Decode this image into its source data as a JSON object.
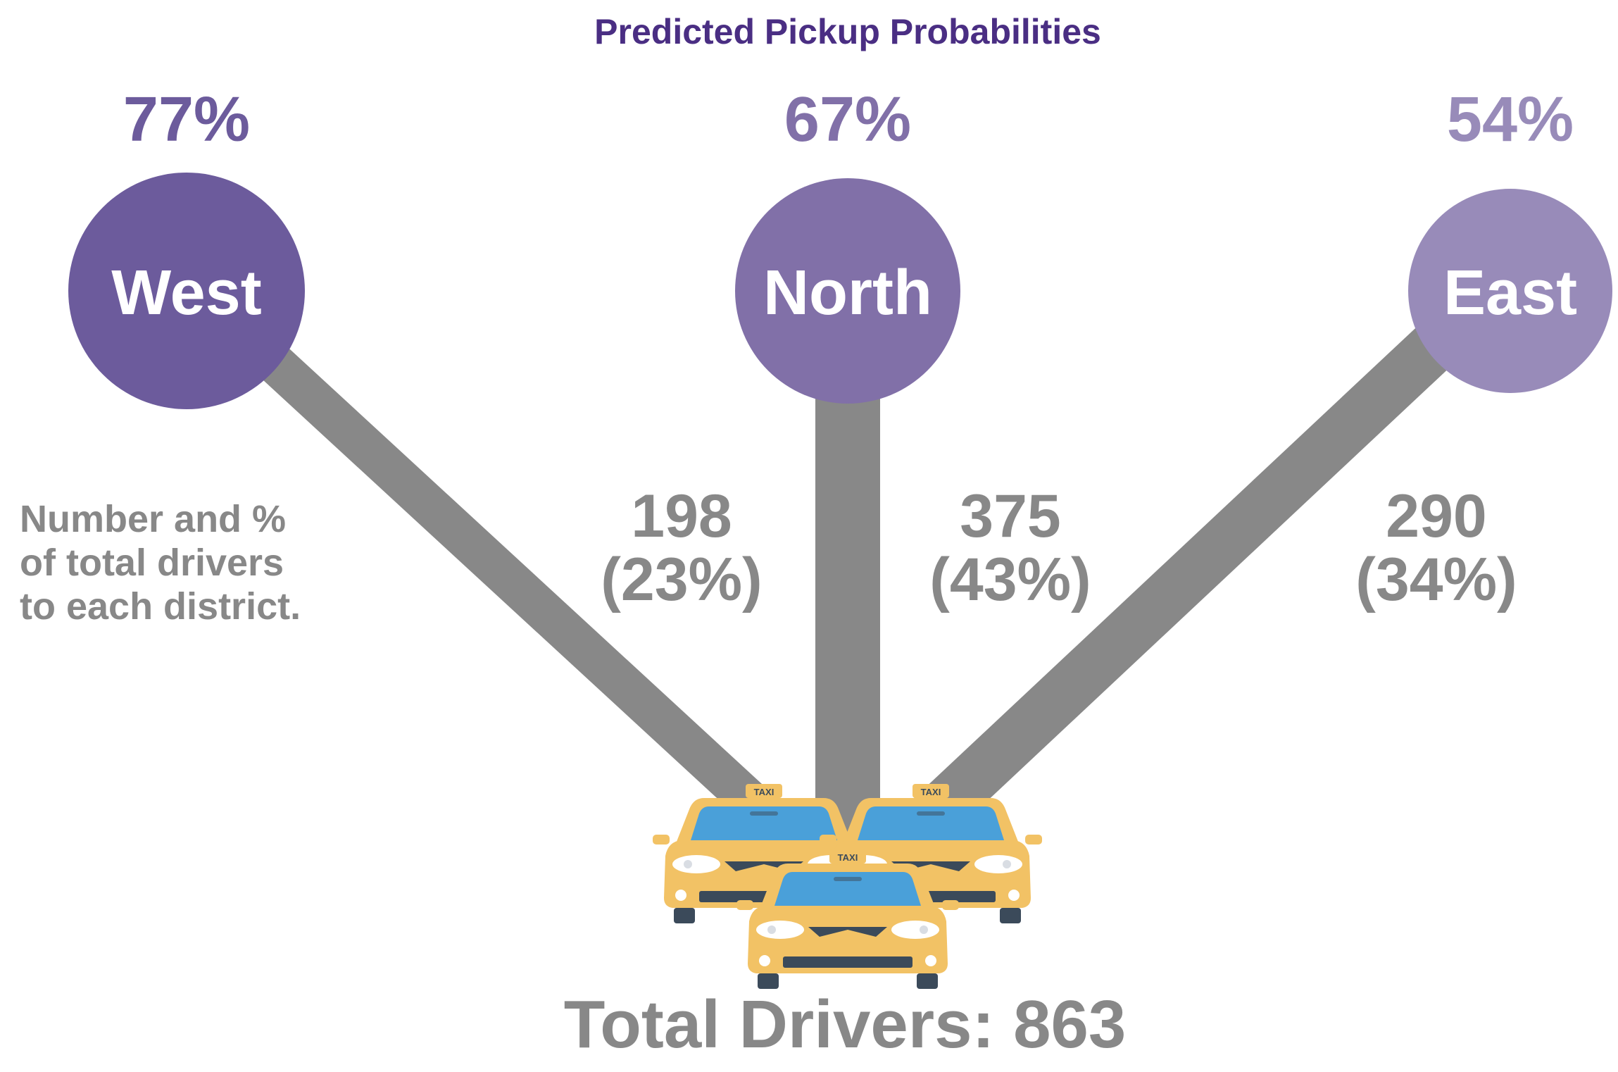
{
  "title": "Predicted Pickup Probabilities",
  "colors": {
    "title": "#4a2e83",
    "west": "#6c5b9c",
    "north": "#8170a8",
    "east": "#988bb9",
    "line": "#888888",
    "gray_text": "#888888",
    "taxi_body": "#f2c265",
    "taxi_glass": "#4aa0d9",
    "taxi_dark": "#3b4a5a"
  },
  "note": {
    "line1": "Number and %",
    "line2": "of total drivers",
    "line3": "to each district."
  },
  "districts": [
    {
      "name": "West",
      "probability": "77%",
      "drivers": "198",
      "share": "(23%)"
    },
    {
      "name": "North",
      "probability": "67%",
      "drivers": "375",
      "share": "(43%)"
    },
    {
      "name": "East",
      "probability": "54%",
      "drivers": "290",
      "share": "(34%)"
    }
  ],
  "taxi_sign": "TAXI",
  "total": "Total Drivers: 863"
}
